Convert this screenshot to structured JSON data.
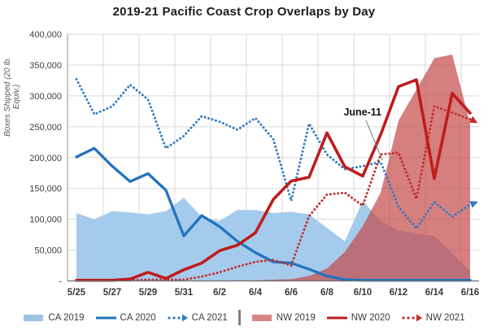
{
  "chart_data": {
    "type": "area+line combo",
    "title": "2019-21 Pacific Coast Crop Overlaps by Day",
    "ylabel": "Boxes Shipped (20 lb. Equiv.)",
    "ylim": [
      0,
      400000
    ],
    "y_tick_step": 50000,
    "y_tick_labels": [
      "-",
      "50,000",
      "100,000",
      "150,000",
      "200,000",
      "250,000",
      "300,000",
      "350,000",
      "400,000"
    ],
    "x_categories": [
      "5/25",
      "5/26",
      "5/27",
      "5/28",
      "5/29",
      "5/30",
      "5/31",
      "6/1",
      "6/2",
      "6/3",
      "6/4",
      "6/5",
      "6/6",
      "6/7",
      "6/8",
      "6/9",
      "6/10",
      "6/11",
      "6/12",
      "6/13",
      "6/14",
      "6/15",
      "6/16"
    ],
    "x_tick_labels": [
      "5/25",
      "5/27",
      "5/29",
      "5/31",
      "6/2",
      "6/4",
      "6/6",
      "6/8",
      "6/10",
      "6/12",
      "6/14",
      "6/16"
    ],
    "grid": true,
    "legend_position": "bottom",
    "annotation": {
      "text": "June-11",
      "target_series": "NW 2021",
      "target_index": 17,
      "target_value": 196000
    },
    "series": [
      {
        "name": "CA 2019",
        "type": "area",
        "z": 1,
        "color": "#A5CBEC",
        "legend_color": "#9DC3E6",
        "values": [
          110000,
          100000,
          113000,
          111000,
          108000,
          113000,
          135000,
          104000,
          97000,
          115000,
          115000,
          110000,
          112000,
          108000,
          86000,
          64000,
          130000,
          97000,
          82000,
          77000,
          73000,
          45000,
          16000
        ]
      },
      {
        "name": "CA 2020",
        "type": "line",
        "style": "solid",
        "z": 3,
        "color": "#2173BE",
        "width": 3.3,
        "values": [
          201000,
          215000,
          186000,
          161000,
          174000,
          147000,
          73000,
          106000,
          88000,
          64000,
          46000,
          31000,
          29000,
          19000,
          8000,
          2000,
          1000,
          1000,
          1000,
          1000,
          1000,
          1000,
          1000
        ]
      },
      {
        "name": "CA 2021",
        "type": "line",
        "style": "dotted",
        "z": 4,
        "color": "#2E7BC2",
        "width": 2.9,
        "arrow_end": true,
        "arrow_angle": -20,
        "values": [
          327000,
          270000,
          283000,
          318000,
          294000,
          215000,
          235000,
          267000,
          258000,
          245000,
          264000,
          230000,
          130000,
          255000,
          205000,
          181000,
          186000,
          193000,
          120000,
          85000,
          128000,
          104000,
          124000
        ]
      },
      {
        "name": "NW 2019",
        "type": "area",
        "z": 2,
        "color": "rgba(197,72,72,0.70)",
        "legend_color": "#D98585",
        "values": [
          0,
          0,
          0,
          0,
          0,
          0,
          0,
          0,
          0,
          1000,
          1000,
          2000,
          3000,
          8000,
          20000,
          47000,
          89000,
          143000,
          260000,
          310000,
          361000,
          367000,
          255000
        ]
      },
      {
        "name": "NW 2020",
        "type": "line",
        "style": "solid",
        "z": 6,
        "color": "#BE1C1C",
        "width": 3.6,
        "values": [
          1000,
          1000,
          1000,
          3000,
          14000,
          4000,
          18000,
          29000,
          49000,
          58000,
          78000,
          132000,
          162000,
          168000,
          240000,
          185000,
          170000,
          237000,
          315000,
          326000,
          166000,
          304000,
          272000
        ]
      },
      {
        "name": "NW 2021",
        "type": "line",
        "style": "dotted",
        "z": 5,
        "color": "#C32A2A",
        "width": 2.9,
        "arrow_end": true,
        "arrow_angle": 30,
        "values": [
          1000,
          1000,
          1000,
          1000,
          2000,
          2000,
          2000,
          7000,
          14000,
          23000,
          31000,
          34000,
          25000,
          105000,
          140000,
          143000,
          122000,
          205000,
          208000,
          133000,
          283000,
          273000,
          262000
        ]
      }
    ],
    "legend_order": [
      "CA 2019",
      "CA 2020",
      "CA 2021",
      "|",
      "NW 2019",
      "NW 2020",
      "NW 2021"
    ]
  }
}
